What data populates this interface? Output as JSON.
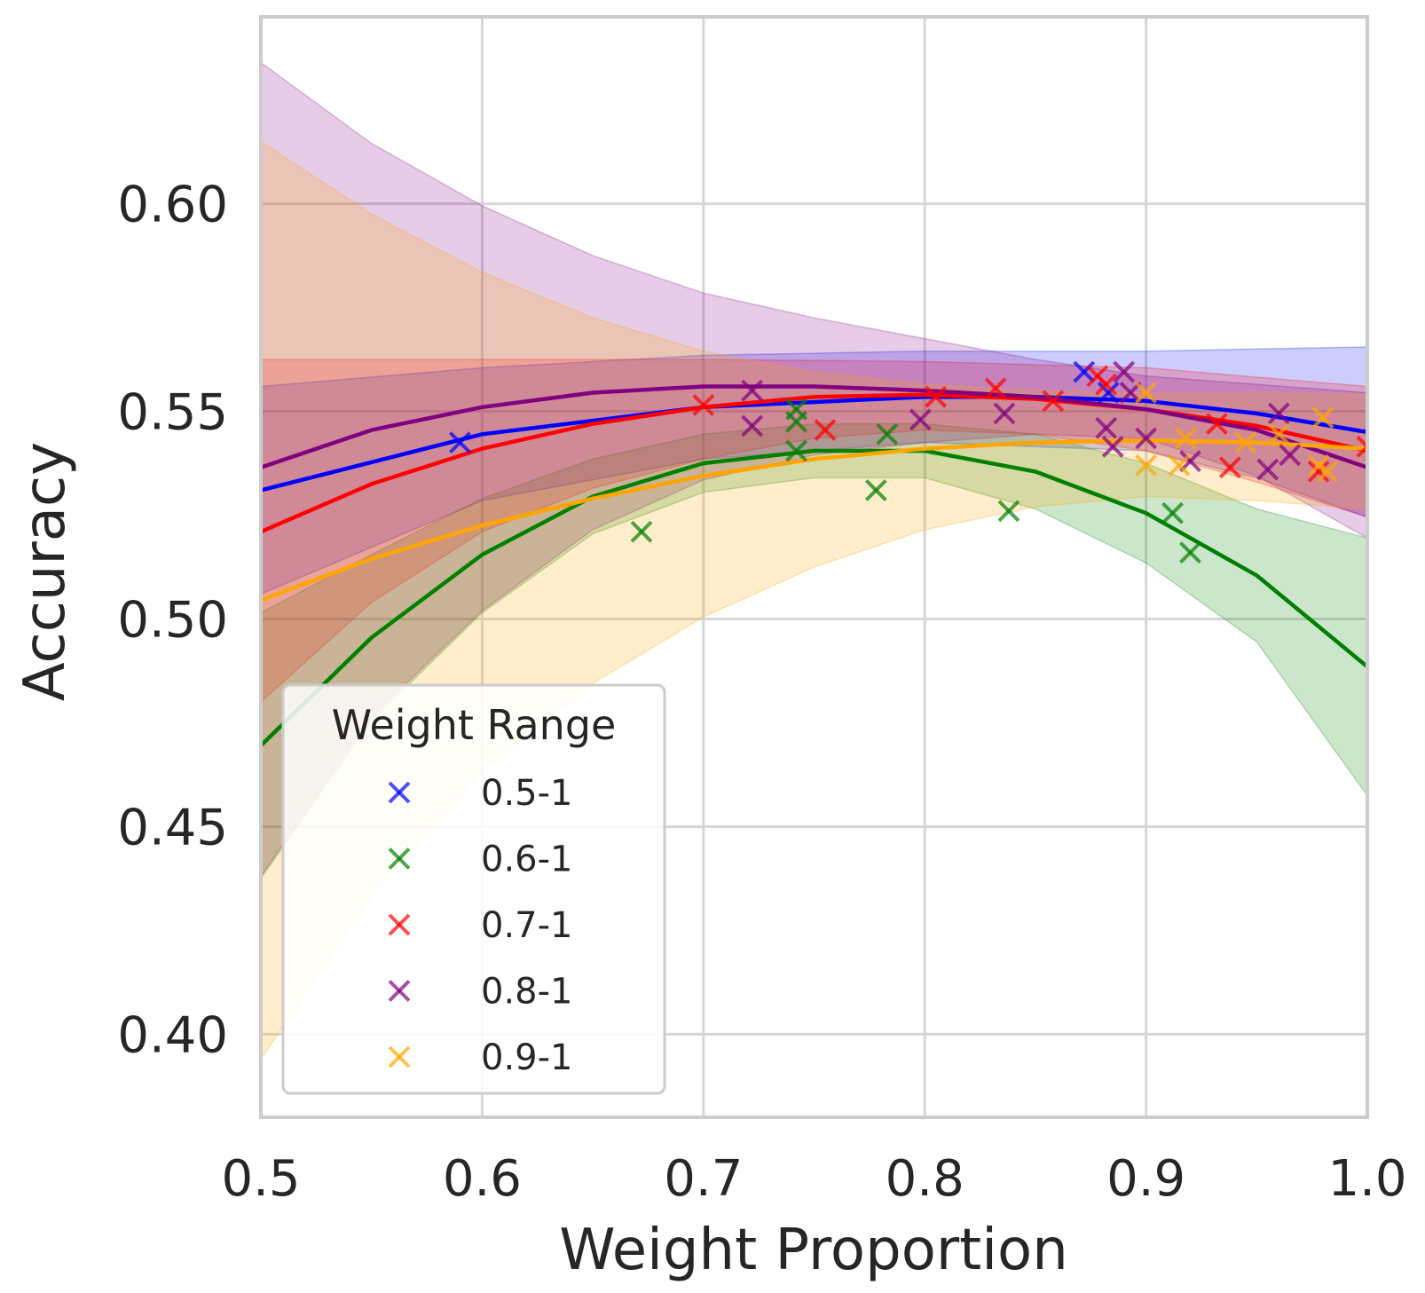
{
  "chart_data": {
    "type": "scatter",
    "xlabel": "Weight Proportion",
    "ylabel": "Accuracy",
    "xlim": [
      0.5,
      1.0
    ],
    "ylim": [
      0.38,
      0.645
    ],
    "grid": true,
    "xticks": [
      0.5,
      0.6,
      0.7,
      0.8,
      0.9,
      1.0
    ],
    "xtick_labels": [
      "0.5",
      "0.6",
      "0.7",
      "0.8",
      "0.9",
      "1.0"
    ],
    "yticks": [
      0.4,
      0.45,
      0.5,
      0.55,
      0.6
    ],
    "ytick_labels": [
      "0.40",
      "0.45",
      "0.50",
      "0.55",
      "0.60"
    ],
    "legend": {
      "title": "Weight Range",
      "location": "lower-left"
    },
    "series": [
      {
        "name": "0.5-1",
        "color": "#0000ff",
        "points": [
          [
            0.59,
            0.5425
          ],
          [
            0.872,
            0.5595
          ],
          [
            0.883,
            0.5545
          ]
        ],
        "fit": [
          [
            0.5,
            0.531
          ],
          [
            0.6,
            0.5445
          ],
          [
            0.7,
            0.551
          ],
          [
            0.8,
            0.5535
          ],
          [
            0.85,
            0.5535
          ],
          [
            0.9,
            0.5525
          ],
          [
            0.95,
            0.5495
          ],
          [
            1.0,
            0.545
          ]
        ],
        "band_upper": [
          [
            0.5,
            0.556
          ],
          [
            0.6,
            0.5605
          ],
          [
            0.7,
            0.5635
          ],
          [
            0.8,
            0.5645
          ],
          [
            0.9,
            0.5645
          ],
          [
            0.95,
            0.565
          ],
          [
            1.0,
            0.5655
          ]
        ],
        "band_lower": [
          [
            0.5,
            0.506
          ],
          [
            0.6,
            0.5285
          ],
          [
            0.7,
            0.5385
          ],
          [
            0.8,
            0.5425
          ],
          [
            0.9,
            0.5405
          ],
          [
            0.95,
            0.534
          ],
          [
            1.0,
            0.5245
          ]
        ]
      },
      {
        "name": "0.6-1",
        "color": "#008000",
        "points": [
          [
            0.672,
            0.521
          ],
          [
            0.742,
            0.5505
          ],
          [
            0.742,
            0.5475
          ],
          [
            0.742,
            0.5405
          ],
          [
            0.778,
            0.531
          ],
          [
            0.783,
            0.5445
          ],
          [
            0.838,
            0.526
          ],
          [
            0.912,
            0.5255
          ],
          [
            0.92,
            0.516
          ]
        ],
        "fit": [
          [
            0.5,
            0.4695
          ],
          [
            0.55,
            0.4955
          ],
          [
            0.6,
            0.5155
          ],
          [
            0.65,
            0.5295
          ],
          [
            0.7,
            0.5375
          ],
          [
            0.75,
            0.5405
          ],
          [
            0.8,
            0.5405
          ],
          [
            0.85,
            0.5355
          ],
          [
            0.9,
            0.5255
          ],
          [
            0.95,
            0.5105
          ],
          [
            1.0,
            0.4885
          ]
        ],
        "band_upper": [
          [
            0.5,
            0.5015
          ],
          [
            0.55,
            0.5155
          ],
          [
            0.6,
            0.529
          ],
          [
            0.65,
            0.5385
          ],
          [
            0.7,
            0.5445
          ],
          [
            0.75,
            0.547
          ],
          [
            0.8,
            0.547
          ],
          [
            0.85,
            0.5445
          ],
          [
            0.9,
            0.5375
          ],
          [
            0.95,
            0.5265
          ],
          [
            1.0,
            0.5195
          ]
        ],
        "band_lower": [
          [
            0.5,
            0.4375
          ],
          [
            0.55,
            0.4755
          ],
          [
            0.6,
            0.5015
          ],
          [
            0.65,
            0.5205
          ],
          [
            0.7,
            0.5305
          ],
          [
            0.75,
            0.534
          ],
          [
            0.8,
            0.534
          ],
          [
            0.85,
            0.5265
          ],
          [
            0.9,
            0.5135
          ],
          [
            0.95,
            0.4945
          ],
          [
            1.0,
            0.4575
          ]
        ]
      },
      {
        "name": "0.7-1",
        "color": "#ff0000",
        "points": [
          [
            0.7,
            0.5515
          ],
          [
            0.755,
            0.5455
          ],
          [
            0.805,
            0.5535
          ],
          [
            0.832,
            0.5555
          ],
          [
            0.858,
            0.5525
          ],
          [
            0.878,
            0.5585
          ],
          [
            0.882,
            0.5565
          ],
          [
            0.932,
            0.547
          ],
          [
            0.938,
            0.5365
          ],
          [
            0.978,
            0.5355
          ],
          [
            1.0,
            0.5415
          ]
        ],
        "fit": [
          [
            0.5,
            0.521
          ],
          [
            0.55,
            0.5325
          ],
          [
            0.6,
            0.541
          ],
          [
            0.65,
            0.547
          ],
          [
            0.7,
            0.551
          ],
          [
            0.75,
            0.5535
          ],
          [
            0.8,
            0.554
          ],
          [
            0.85,
            0.553
          ],
          [
            0.9,
            0.5505
          ],
          [
            0.95,
            0.5465
          ],
          [
            1.0,
            0.5405
          ]
        ],
        "band_upper": [
          [
            0.5,
            0.5625
          ],
          [
            0.6,
            0.5625
          ],
          [
            0.7,
            0.5625
          ],
          [
            0.8,
            0.562
          ],
          [
            0.9,
            0.5605
          ],
          [
            1.0,
            0.556
          ]
        ],
        "band_lower": [
          [
            0.5,
            0.48
          ],
          [
            0.55,
            0.504
          ],
          [
            0.6,
            0.521
          ],
          [
            0.65,
            0.5315
          ],
          [
            0.7,
            0.5385
          ],
          [
            0.75,
            0.5435
          ],
          [
            0.8,
            0.5455
          ],
          [
            0.85,
            0.5445
          ],
          [
            0.9,
            0.5405
          ],
          [
            0.95,
            0.533
          ],
          [
            1.0,
            0.5245
          ]
        ]
      },
      {
        "name": "0.8-1",
        "color": "#800080",
        "points": [
          [
            0.722,
            0.555
          ],
          [
            0.722,
            0.5465
          ],
          [
            0.798,
            0.548
          ],
          [
            0.836,
            0.5495
          ],
          [
            0.882,
            0.546
          ],
          [
            0.885,
            0.5415
          ],
          [
            0.89,
            0.5595
          ],
          [
            0.893,
            0.5545
          ],
          [
            0.9,
            0.5435
          ],
          [
            0.92,
            0.538
          ],
          [
            0.955,
            0.536
          ],
          [
            0.96,
            0.5495
          ],
          [
            0.965,
            0.5395
          ]
        ],
        "fit": [
          [
            0.5,
            0.5365
          ],
          [
            0.55,
            0.5455
          ],
          [
            0.6,
            0.551
          ],
          [
            0.65,
            0.5545
          ],
          [
            0.7,
            0.556
          ],
          [
            0.75,
            0.556
          ],
          [
            0.8,
            0.555
          ],
          [
            0.85,
            0.5535
          ],
          [
            0.9,
            0.5505
          ],
          [
            0.95,
            0.5455
          ],
          [
            1.0,
            0.5365
          ]
        ],
        "band_upper": [
          [
            0.5,
            0.634
          ],
          [
            0.55,
            0.6145
          ],
          [
            0.6,
            0.5995
          ],
          [
            0.65,
            0.5875
          ],
          [
            0.7,
            0.5785
          ],
          [
            0.75,
            0.5725
          ],
          [
            0.8,
            0.5675
          ],
          [
            0.85,
            0.5625
          ],
          [
            0.9,
            0.5585
          ],
          [
            0.95,
            0.5565
          ],
          [
            1.0,
            0.5545
          ]
        ],
        "band_lower": [
          [
            0.5,
            0.438
          ],
          [
            0.55,
            0.4765
          ],
          [
            0.6,
            0.502
          ],
          [
            0.65,
            0.5215
          ],
          [
            0.7,
            0.5335
          ],
          [
            0.75,
            0.5395
          ],
          [
            0.8,
            0.5425
          ],
          [
            0.85,
            0.5445
          ],
          [
            0.9,
            0.5435
          ],
          [
            0.95,
            0.5345
          ],
          [
            1.0,
            0.5195
          ]
        ]
      },
      {
        "name": "0.9-1",
        "color": "#ffa500",
        "points": [
          [
            0.9,
            0.5545
          ],
          [
            0.9,
            0.537
          ],
          [
            0.915,
            0.537
          ],
          [
            0.918,
            0.5435
          ],
          [
            0.945,
            0.5425
          ],
          [
            0.96,
            0.5445
          ],
          [
            0.978,
            0.537
          ],
          [
            0.98,
            0.5485
          ],
          [
            0.982,
            0.5355
          ]
        ],
        "fit": [
          [
            0.5,
            0.5045
          ],
          [
            0.55,
            0.5145
          ],
          [
            0.6,
            0.5225
          ],
          [
            0.65,
            0.529
          ],
          [
            0.7,
            0.5345
          ],
          [
            0.75,
            0.5385
          ],
          [
            0.8,
            0.541
          ],
          [
            0.85,
            0.5425
          ],
          [
            0.9,
            0.543
          ],
          [
            0.95,
            0.5425
          ],
          [
            1.0,
            0.541
          ]
        ],
        "band_upper": [
          [
            0.5,
            0.615
          ],
          [
            0.55,
            0.5975
          ],
          [
            0.6,
            0.5835
          ],
          [
            0.65,
            0.5725
          ],
          [
            0.7,
            0.5645
          ],
          [
            0.75,
            0.5595
          ],
          [
            0.8,
            0.5565
          ],
          [
            0.85,
            0.555
          ],
          [
            0.9,
            0.5545
          ],
          [
            0.95,
            0.5545
          ],
          [
            1.0,
            0.554
          ]
        ],
        "band_lower": [
          [
            0.5,
            0.394
          ],
          [
            0.55,
            0.4335
          ],
          [
            0.6,
            0.4635
          ],
          [
            0.65,
            0.4845
          ],
          [
            0.7,
            0.5005
          ],
          [
            0.75,
            0.5125
          ],
          [
            0.8,
            0.5215
          ],
          [
            0.85,
            0.527
          ],
          [
            0.9,
            0.5295
          ],
          [
            0.95,
            0.5285
          ],
          [
            1.0,
            0.5265
          ]
        ]
      }
    ]
  }
}
